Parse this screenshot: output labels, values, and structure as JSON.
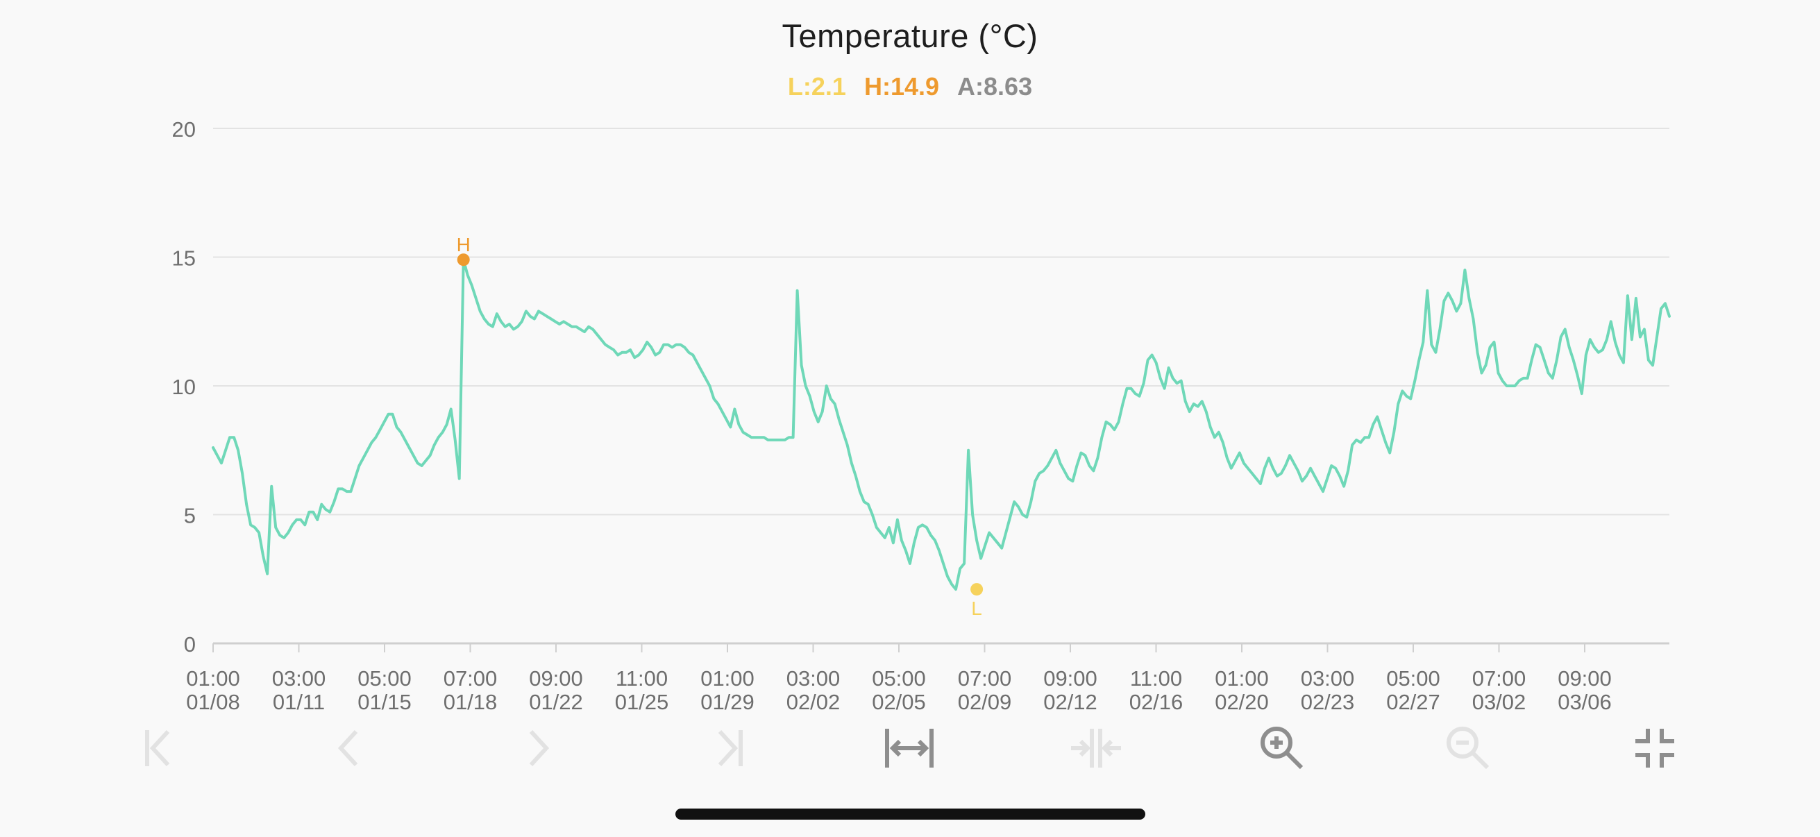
{
  "title": "Temperature (°C)",
  "summary": {
    "low": "L:2.1",
    "high": "H:14.9",
    "avg": "A:8.63"
  },
  "colors": {
    "line": "#6fd8b8",
    "low": "#f6d25c",
    "high": "#ee9a2e",
    "avg": "#8c8c8c",
    "grid": "#e3e3e3",
    "axis": "#6e6e6e"
  },
  "toolbar": [
    {
      "name": "jump-start-icon",
      "enabled": false
    },
    {
      "name": "previous-icon",
      "enabled": false
    },
    {
      "name": "next-icon",
      "enabled": false
    },
    {
      "name": "jump-end-icon",
      "enabled": false
    },
    {
      "name": "fit-width-icon",
      "enabled": true
    },
    {
      "name": "compress-width-icon",
      "enabled": false
    },
    {
      "name": "zoom-in-icon",
      "enabled": true
    },
    {
      "name": "zoom-out-icon",
      "enabled": false
    },
    {
      "name": "exit-fullscreen-icon",
      "enabled": true
    }
  ],
  "chart_data": {
    "type": "line",
    "title": "Temperature (°C)",
    "ylim": [
      0,
      20
    ],
    "yticks": [
      "0",
      "5",
      "10",
      "15",
      "20"
    ],
    "xticks": [
      [
        "01:00",
        "01/08"
      ],
      [
        "03:00",
        "01/11"
      ],
      [
        "05:00",
        "01/15"
      ],
      [
        "07:00",
        "01/18"
      ],
      [
        "09:00",
        "01/22"
      ],
      [
        "11:00",
        "01/25"
      ],
      [
        "01:00",
        "01/29"
      ],
      [
        "03:00",
        "02/02"
      ],
      [
        "05:00",
        "02/05"
      ],
      [
        "07:00",
        "02/09"
      ],
      [
        "09:00",
        "02/12"
      ],
      [
        "11:00",
        "02/16"
      ],
      [
        "01:00",
        "02/20"
      ],
      [
        "03:00",
        "02/23"
      ],
      [
        "05:00",
        "02/27"
      ],
      [
        "07:00",
        "03/02"
      ],
      [
        "09:00",
        "03/06"
      ]
    ],
    "x_start": "01/08 01:00",
    "x_end": "03/09 04:00",
    "grid": true,
    "series": [
      {
        "values": [
          7.6,
          7.3,
          7.0,
          7.5,
          8.0,
          8.0,
          7.5,
          6.6,
          5.4,
          4.6,
          4.5,
          4.3,
          3.4,
          2.7,
          6.1,
          4.5,
          4.2,
          4.1,
          4.3,
          4.6,
          4.8,
          4.8,
          4.6,
          5.1,
          5.1,
          4.8,
          5.4,
          5.2,
          5.1,
          5.5,
          6.0,
          6.0,
          5.9,
          5.9,
          6.4,
          6.9,
          7.2,
          7.5,
          7.8,
          8.0,
          8.3,
          8.6,
          8.9,
          8.9,
          8.4,
          8.2,
          7.9,
          7.6,
          7.3,
          7.0,
          6.9,
          7.1,
          7.3,
          7.7,
          8.0,
          8.2,
          8.5,
          9.1,
          7.9,
          6.4,
          14.9,
          14.3,
          13.9,
          13.4,
          12.9,
          12.6,
          12.4,
          12.3,
          12.8,
          12.5,
          12.3,
          12.4,
          12.2,
          12.3,
          12.5,
          12.9,
          12.7,
          12.6,
          12.9,
          12.8,
          12.7,
          12.6,
          12.5,
          12.4,
          12.5,
          12.4,
          12.3,
          12.3,
          12.2,
          12.1,
          12.3,
          12.2,
          12.0,
          11.8,
          11.6,
          11.5,
          11.4,
          11.2,
          11.3,
          11.3,
          11.4,
          11.1,
          11.2,
          11.4,
          11.7,
          11.5,
          11.2,
          11.3,
          11.6,
          11.6,
          11.5,
          11.6,
          11.6,
          11.5,
          11.3,
          11.2,
          10.9,
          10.6,
          10.3,
          10.0,
          9.5,
          9.3,
          9.0,
          8.7,
          8.4,
          9.1,
          8.5,
          8.2,
          8.1,
          8.0,
          8.0,
          8.0,
          8.0,
          7.9,
          7.9,
          7.9,
          7.9,
          7.9,
          8.0,
          8.0,
          13.7,
          10.8,
          10.0,
          9.6,
          9.0,
          8.6,
          9.0,
          10.0,
          9.5,
          9.3,
          8.7,
          8.2,
          7.7,
          7.0,
          6.5,
          5.9,
          5.5,
          5.4,
          5.0,
          4.5,
          4.3,
          4.1,
          4.5,
          3.9,
          4.8,
          4.0,
          3.6,
          3.1,
          3.9,
          4.5,
          4.6,
          4.5,
          4.2,
          4.0,
          3.6,
          3.1,
          2.6,
          2.3,
          2.1,
          2.9,
          3.1,
          7.5,
          5.0,
          4.0,
          3.3,
          3.8,
          4.3,
          4.1,
          3.9,
          3.7,
          4.3,
          4.9,
          5.5,
          5.3,
          5.0,
          4.9,
          5.5,
          6.3,
          6.6,
          6.7,
          6.9,
          7.2,
          7.5,
          7.0,
          6.7,
          6.4,
          6.3,
          6.9,
          7.4,
          7.3,
          6.9,
          6.7,
          7.2,
          8.0,
          8.6,
          8.5,
          8.3,
          8.6,
          9.3,
          9.9,
          9.9,
          9.7,
          9.6,
          10.1,
          11.0,
          11.2,
          10.9,
          10.3,
          9.9,
          10.7,
          10.3,
          10.1,
          10.2,
          9.4,
          9.0,
          9.3,
          9.2,
          9.4,
          9.0,
          8.4,
          8.0,
          8.2,
          7.8,
          7.2,
          6.8,
          7.1,
          7.4,
          7.0,
          6.8,
          6.6,
          6.4,
          6.2,
          6.8,
          7.2,
          6.8,
          6.5,
          6.6,
          6.9,
          7.3,
          7.0,
          6.7,
          6.3,
          6.5,
          6.8,
          6.5,
          6.2,
          5.9,
          6.4,
          6.9,
          6.8,
          6.5,
          6.1,
          6.7,
          7.7,
          7.9,
          7.8,
          8.0,
          8.0,
          8.5,
          8.8,
          8.3,
          7.8,
          7.4,
          8.2,
          9.3,
          9.8,
          9.6,
          9.5,
          10.2,
          11.0,
          11.7,
          13.7,
          11.6,
          11.3,
          12.2,
          13.3,
          13.6,
          13.3,
          12.9,
          13.2,
          14.5,
          13.4,
          12.6,
          11.3,
          10.5,
          10.8,
          11.5,
          11.7,
          10.5,
          10.2,
          10.0,
          10.0,
          10.0,
          10.2,
          10.3,
          10.3,
          11.0,
          11.6,
          11.5,
          11.0,
          10.5,
          10.3,
          11.0,
          11.9,
          12.2,
          11.5,
          11.0,
          10.4,
          9.7,
          11.2,
          11.8,
          11.5,
          11.3,
          11.4,
          11.8,
          12.5,
          11.7,
          11.2,
          10.9,
          13.5,
          11.8,
          13.4,
          11.9,
          12.2,
          11.0,
          10.8,
          11.9,
          13.0,
          13.2,
          12.7
        ]
      }
    ],
    "low": {
      "label": "L",
      "value": 2.1,
      "index": 183
    },
    "high": {
      "label": "H",
      "value": 14.9,
      "index": 60
    }
  }
}
